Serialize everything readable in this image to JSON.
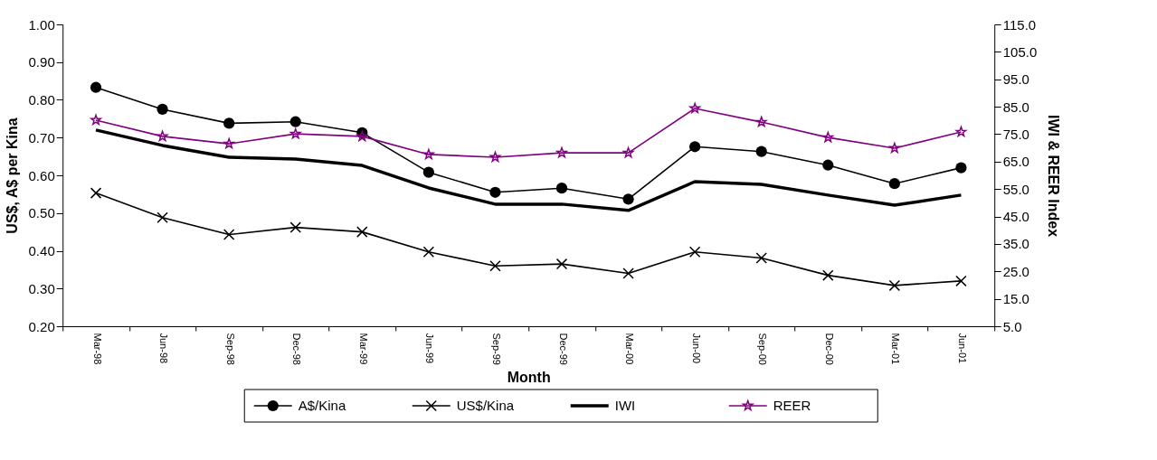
{
  "chart_data": {
    "type": "line",
    "xlabel": "Month",
    "ylabel": "US$, A$ per Kina",
    "y2label": "IWI & REER Index",
    "categories": [
      "Mar-98",
      "Jun-98",
      "Sep-98",
      "Dec-98",
      "Mar-99",
      "Jun-99",
      "Sep-99",
      "Dec-99",
      "Mar-00",
      "Jun-00",
      "Sep-00",
      "Dec-00",
      "Mar-01",
      "Jun-01"
    ],
    "series": [
      {
        "name": "A$/Kina",
        "color": "#000000",
        "marker": "circle",
        "axis": "y",
        "values": [
          0.833,
          0.775,
          0.738,
          0.742,
          0.713,
          0.608,
          0.555,
          0.566,
          0.537,
          0.676,
          0.663,
          0.627,
          0.578,
          0.62
        ]
      },
      {
        "name": "US$/Kina",
        "color": "#000000",
        "marker": "cross",
        "axis": "y",
        "values": [
          0.553,
          0.488,
          0.443,
          0.462,
          0.45,
          0.397,
          0.36,
          0.365,
          0.34,
          0.397,
          0.381,
          0.335,
          0.308,
          0.32
        ]
      },
      {
        "name": "IWI",
        "color": "#000000",
        "marker": "none",
        "axis": "y2",
        "values": [
          76.5,
          70.9,
          66.6,
          65.9,
          63.6,
          55.4,
          49.5,
          49.5,
          47.2,
          57.7,
          56.7,
          52.8,
          49.1,
          52.8
        ]
      },
      {
        "name": "REER",
        "color": "#800080",
        "marker": "star",
        "axis": "y2",
        "values": [
          80.1,
          74.2,
          71.5,
          75.1,
          74.2,
          67.6,
          66.6,
          68.2,
          68.2,
          84.4,
          79.4,
          73.8,
          69.9,
          75.8
        ]
      }
    ],
    "ylim": [
      0.2,
      1.0
    ],
    "yticks": [
      {
        "value": 0.2,
        "label": "0.20"
      },
      {
        "value": 0.3,
        "label": "0.30"
      },
      {
        "value": 0.4,
        "label": "0.40"
      },
      {
        "value": 0.5,
        "label": "0.50"
      },
      {
        "value": 0.6,
        "label": "0.60"
      },
      {
        "value": 0.7,
        "label": "0.70"
      },
      {
        "value": 0.8,
        "label": "0.80"
      },
      {
        "value": 0.9,
        "label": "0.90"
      },
      {
        "value": 1.0,
        "label": "1.00"
      }
    ],
    "y2lim": [
      5,
      115
    ],
    "y2ticks": [
      {
        "value": 5,
        "label": "5.0"
      },
      {
        "value": 15,
        "label": "15.0"
      },
      {
        "value": 25,
        "label": "25.0"
      },
      {
        "value": 35,
        "label": "35.0"
      },
      {
        "value": 45,
        "label": "45.0"
      },
      {
        "value": 55,
        "label": "55.0"
      },
      {
        "value": 65,
        "label": "65.0"
      },
      {
        "value": 75,
        "label": "75.0"
      },
      {
        "value": 85,
        "label": "85.0"
      },
      {
        "value": 95,
        "label": "95.0"
      },
      {
        "value": 105,
        "label": "105.0"
      },
      {
        "value": 115,
        "label": "115.0"
      }
    ],
    "grid": false,
    "legend": "bottom"
  }
}
